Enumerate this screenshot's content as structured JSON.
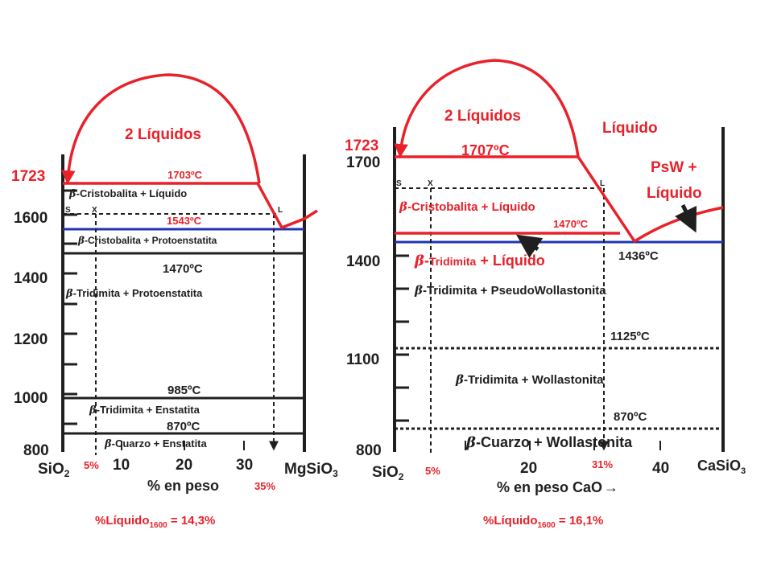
{
  "colors": {
    "red": "#e8212a",
    "black": "#1f1f1f",
    "blue": "#1f35b3"
  },
  "left": {
    "y_ticks": [
      "1723",
      "1600",
      "1400",
      "1200",
      "1000",
      "800"
    ],
    "two_liquids": "2 Líquidos",
    "t1703": "1703ºC",
    "cristobalita_liquido": "-Cristobalita + Líquido",
    "s": "S",
    "x": "X",
    "l": "L",
    "t1543": "1543ºC",
    "cristobalita_proto": "-Cristobalita + Protoenstatita",
    "t1470": "1470ºC",
    "tridimita_proto": "-Tridimita + Protoenstatita",
    "t985": "985ºC",
    "tridimita_enst": "-Tridimita + Enstatita",
    "t870": "870ºC",
    "cuarzo_enst": "-Cuarzo + Enstatita",
    "x_left": "SiO",
    "x_left_sub": "2",
    "x_ticks": [
      "10",
      "20",
      "30"
    ],
    "x_right": "MgSiO",
    "x_right_sub": "3",
    "pct5": "5%",
    "pct35": "35%",
    "axis_title": "% en peso",
    "result_pre": "%Líquido",
    "result_sub": "1600",
    "result_post": " = 14,3%"
  },
  "right": {
    "two_liquids": "2 Líquidos",
    "liquido": "Líquido",
    "t1723": "1723",
    "t1707": "1707ºC",
    "y_ticks": [
      "1700",
      "1400",
      "1100",
      "800"
    ],
    "psw_1": "PsW +",
    "psw_2": "Líquido",
    "s": "S",
    "x": "X",
    "l": "L",
    "cristobalita_liquido": "-Cristobalita + Líquido",
    "t1470": "1470ºC",
    "tridimita_liquido_a": "-",
    "tridimita_liquido_b": "Tridimita",
    "tridimita_liquido_c": " + Líquido",
    "t1436": "1436ºC",
    "tridimita_pseudo": "-Tridimita + PseudoWollastonita",
    "t1125": "1125ºC",
    "tridimita_woll": "-Tridimita + Wollastonita",
    "t870": "870ºC",
    "cuarzo_woll": "-Cuarzo + Wollastonita",
    "x_left": "SiO",
    "x_left_sub": "2",
    "pct5": "5%",
    "x_ticks": [
      "20",
      "40"
    ],
    "pct31": "31%",
    "x_right": "CaSiO",
    "x_right_sub": "3",
    "axis_title": "% en peso CaO",
    "arrow_glyph": "→",
    "result_pre": "%Líquido",
    "result_sub": "1600",
    "result_post": " = 16,1%"
  },
  "beta": "b"
}
